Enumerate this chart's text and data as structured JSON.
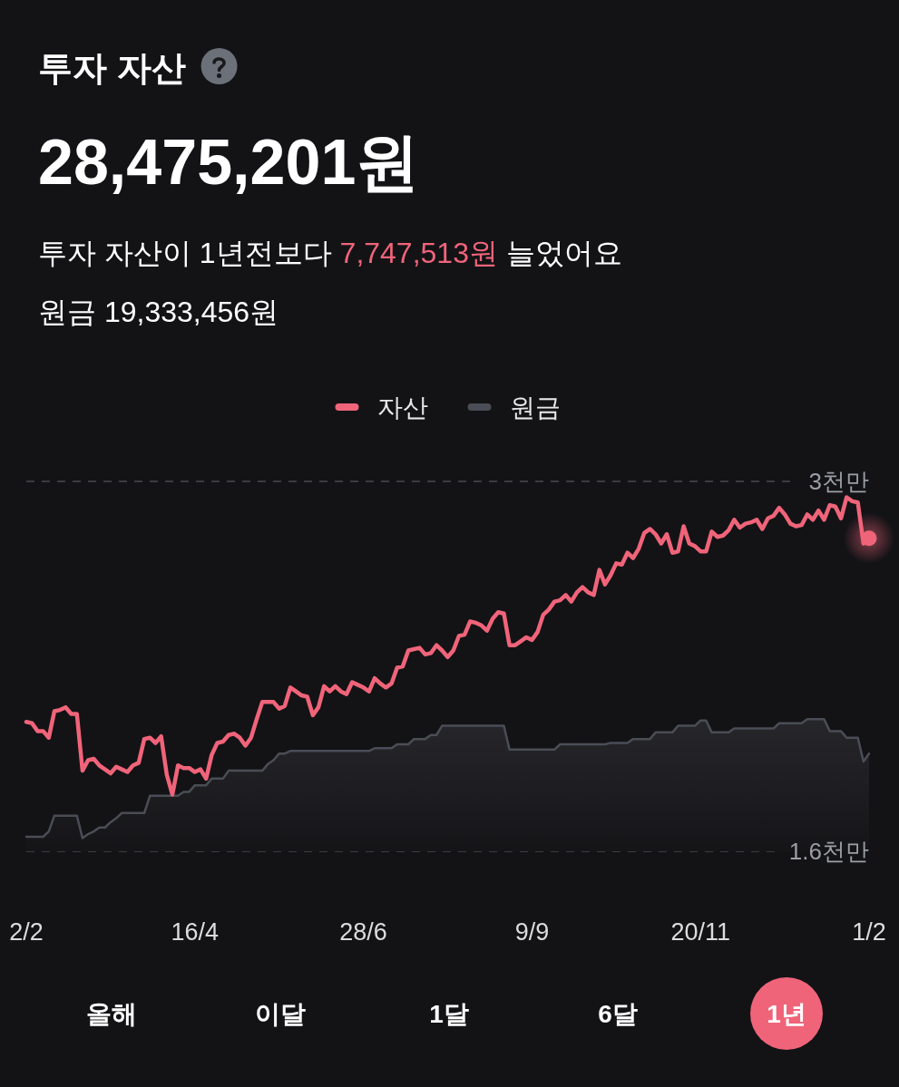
{
  "chart_data": {
    "type": "line",
    "title": "투자 자산",
    "subtitle": "28,475,201원",
    "annotations": [
      "투자 자산이 1년전보다",
      "7,747,513원",
      "늘었어요",
      "원금 19,333,456원",
      "올해",
      "이달",
      "1달",
      "6달",
      "1년"
    ],
    "legend": "top",
    "grid": "y",
    "categories": [
      "2/2",
      null,
      null,
      null,
      null,
      null,
      null,
      null,
      null,
      null,
      null,
      null,
      null,
      null,
      null,
      null,
      null,
      null,
      null,
      null,
      null,
      null,
      null,
      null,
      null,
      null,
      null,
      null,
      null,
      null,
      "16/4",
      null,
      null,
      null,
      null,
      null,
      null,
      null,
      null,
      null,
      null,
      null,
      null,
      null,
      null,
      null,
      null,
      null,
      null,
      null,
      null,
      null,
      null,
      null,
      null,
      null,
      null,
      null,
      null,
      null,
      "28/6",
      null,
      null,
      null,
      null,
      null,
      null,
      null,
      null,
      null,
      null,
      null,
      null,
      null,
      null,
      null,
      null,
      null,
      null,
      null,
      null,
      null,
      null,
      null,
      null,
      null,
      null,
      null,
      null,
      null,
      "9/9",
      null,
      null,
      null,
      null,
      null,
      null,
      null,
      null,
      null,
      null,
      null,
      null,
      null,
      null,
      null,
      null,
      null,
      null,
      null,
      null,
      null,
      null,
      null,
      null,
      null,
      null,
      null,
      null,
      null,
      "20/11",
      null,
      null,
      null,
      null,
      null,
      null,
      null,
      null,
      null,
      null,
      null,
      null,
      null,
      null,
      null,
      null,
      null,
      null,
      null,
      null,
      null,
      null,
      null,
      null,
      null,
      null,
      null,
      null,
      null,
      "1/2"
    ],
    "ylim": [
      1.6,
      3
    ],
    "yticks": [
      {
        "value": 3,
        "label": "3천만"
      },
      {
        "value": 1.6,
        "label": "1.6천만"
      }
    ],
    "series": [
      {
        "name": "자산",
        "color": "#f0647a",
        "values": [
          2.09,
          2.085,
          2.055,
          2.055,
          2.03,
          2.13,
          2.135,
          2.145,
          2.12,
          2.12,
          1.905,
          1.945,
          1.95,
          1.925,
          1.91,
          1.895,
          1.92,
          1.91,
          1.9,
          1.925,
          1.935,
          2.025,
          2.03,
          2.01,
          2.035,
          1.89,
          1.815,
          1.925,
          1.915,
          1.915,
          1.9,
          1.91,
          1.875,
          1.965,
          2.01,
          2.015,
          2.04,
          2.045,
          2.03,
          2.0,
          2.03,
          2.1,
          2.165,
          2.165,
          2.165,
          2.14,
          2.15,
          2.22,
          2.205,
          2.19,
          2.185,
          2.115,
          2.145,
          2.225,
          2.205,
          2.225,
          2.205,
          2.195,
          2.24,
          2.23,
          2.22,
          2.205,
          2.255,
          2.235,
          2.22,
          2.235,
          2.295,
          2.3,
          2.36,
          2.365,
          2.37,
          2.345,
          2.35,
          2.38,
          2.36,
          2.335,
          2.36,
          2.415,
          2.42,
          2.47,
          2.465,
          2.455,
          2.435,
          2.48,
          2.505,
          2.5,
          2.38,
          2.38,
          2.395,
          2.41,
          2.4,
          2.43,
          2.495,
          2.515,
          2.545,
          2.55,
          2.57,
          2.545,
          2.58,
          2.6,
          2.58,
          2.57,
          2.665,
          2.61,
          2.645,
          2.69,
          2.685,
          2.73,
          2.71,
          2.745,
          2.805,
          2.82,
          2.8,
          2.765,
          2.8,
          2.73,
          2.735,
          2.83,
          2.765,
          2.755,
          2.735,
          2.735,
          2.81,
          2.79,
          2.795,
          2.815,
          2.855,
          2.825,
          2.84,
          2.845,
          2.855,
          2.82,
          2.86,
          2.87,
          2.9,
          2.875,
          2.84,
          2.83,
          2.835,
          2.875,
          2.855,
          2.89,
          2.855,
          2.91,
          2.905,
          2.86,
          2.94,
          2.925,
          2.92,
          2.765,
          2.785
        ]
      },
      {
        "name": "원금",
        "type": "area",
        "color": "#4a4d55",
        "values": [
          1.655,
          1.655,
          1.655,
          1.655,
          1.675,
          1.735,
          1.735,
          1.735,
          1.735,
          1.735,
          1.65,
          1.665,
          1.675,
          1.69,
          1.69,
          1.71,
          1.725,
          1.745,
          1.745,
          1.745,
          1.745,
          1.745,
          1.81,
          1.81,
          1.81,
          1.81,
          1.81,
          1.81,
          1.825,
          1.825,
          1.85,
          1.85,
          1.85,
          1.875,
          1.875,
          1.875,
          1.905,
          1.905,
          1.905,
          1.905,
          1.905,
          1.905,
          1.905,
          1.93,
          1.945,
          1.97,
          1.97,
          1.98,
          1.98,
          1.98,
          1.98,
          1.98,
          1.98,
          1.98,
          1.98,
          1.98,
          1.98,
          1.98,
          1.98,
          1.98,
          1.98,
          1.98,
          1.99,
          1.99,
          1.99,
          1.99,
          2.005,
          2.005,
          2.005,
          2.025,
          2.025,
          2.025,
          2.04,
          2.04,
          2.075,
          2.075,
          2.075,
          2.075,
          2.075,
          2.075,
          2.075,
          2.075,
          2.075,
          2.075,
          2.075,
          2.075,
          1.985,
          1.985,
          1.985,
          1.985,
          1.985,
          1.985,
          1.985,
          1.985,
          1.985,
          2.005,
          2.005,
          2.005,
          2.005,
          2.005,
          2.005,
          2.005,
          2.005,
          2.005,
          2.01,
          2.01,
          2.01,
          2.01,
          2.025,
          2.025,
          2.025,
          2.025,
          2.05,
          2.05,
          2.05,
          2.05,
          2.075,
          2.075,
          2.075,
          2.075,
          2.095,
          2.095,
          2.05,
          2.05,
          2.05,
          2.05,
          2.065,
          2.065,
          2.065,
          2.065,
          2.065,
          2.065,
          2.065,
          2.065,
          2.085,
          2.085,
          2.085,
          2.085,
          2.085,
          2.1,
          2.1,
          2.1,
          2.1,
          2.055,
          2.055,
          2.055,
          2.03,
          2.03,
          2.03,
          1.94,
          1.97
        ]
      },
      {
        "type": "scatter",
        "color": "#f0647a",
        "marker": "circle",
        "values": [
          null,
          null,
          null,
          null,
          null,
          null,
          null,
          null,
          null,
          null,
          null,
          null,
          null,
          null,
          null,
          null,
          null,
          null,
          null,
          null,
          null,
          null,
          null,
          null,
          null,
          null,
          null,
          null,
          null,
          null,
          null,
          null,
          null,
          null,
          null,
          null,
          null,
          null,
          null,
          null,
          null,
          null,
          null,
          null,
          null,
          null,
          null,
          null,
          null,
          null,
          null,
          null,
          null,
          null,
          null,
          null,
          null,
          null,
          null,
          null,
          null,
          null,
          null,
          null,
          null,
          null,
          null,
          null,
          null,
          null,
          null,
          null,
          null,
          null,
          null,
          null,
          null,
          null,
          null,
          null,
          null,
          null,
          null,
          null,
          null,
          null,
          null,
          null,
          null,
          null,
          null,
          null,
          null,
          null,
          null,
          null,
          null,
          null,
          null,
          null,
          null,
          null,
          null,
          null,
          null,
          null,
          null,
          null,
          null,
          null,
          null,
          null,
          null,
          null,
          null,
          null,
          null,
          null,
          null,
          null,
          null,
          null,
          null,
          null,
          null,
          null,
          null,
          null,
          null,
          null,
          null,
          null,
          null,
          null,
          null,
          null,
          null,
          null,
          null,
          null,
          null,
          null,
          null,
          null,
          null,
          null,
          null,
          null,
          null,
          null,
          2.785
        ]
      }
    ]
  }
}
